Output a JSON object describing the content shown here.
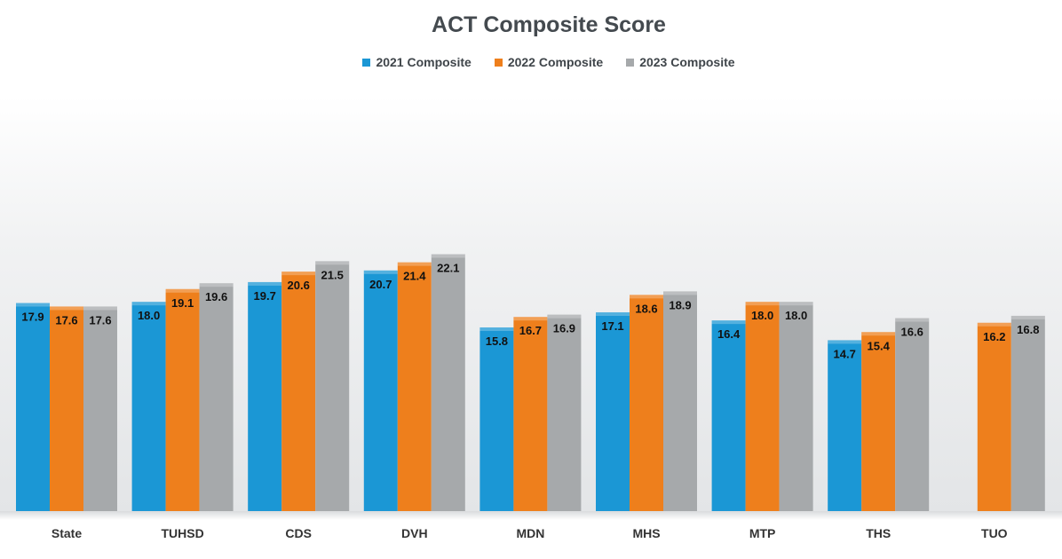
{
  "chart_data": {
    "type": "bar",
    "title": "ACT Composite Score",
    "categories": [
      "State",
      "TUHSD",
      "CDS",
      "DVH",
      "MDN",
      "MHS",
      "MTP",
      "THS",
      "TUO"
    ],
    "series": [
      {
        "name": "2021 Composite",
        "color": "#1b97d5",
        "values": [
          17.9,
          18.0,
          19.7,
          20.7,
          15.8,
          17.1,
          16.4,
          14.7,
          null
        ]
      },
      {
        "name": "2022 Composite",
        "color": "#ee7f1c",
        "values": [
          17.6,
          19.1,
          20.6,
          21.4,
          16.7,
          18.6,
          18.0,
          15.4,
          16.2
        ]
      },
      {
        "name": "2023 Composite",
        "color": "#a6a9ab",
        "values": [
          17.6,
          19.6,
          21.5,
          22.1,
          16.9,
          18.9,
          18.0,
          16.6,
          16.8
        ]
      }
    ],
    "data_labels": [
      [
        "17.9",
        "17.6",
        "17.6"
      ],
      [
        "18.0",
        "19.1",
        "19.6"
      ],
      [
        "19.7",
        "20.6",
        "21.5"
      ],
      [
        "20.7",
        "21.4",
        "22.1"
      ],
      [
        "15.8",
        "16.7",
        "16.9"
      ],
      [
        "17.1",
        "18.6",
        "18.9"
      ],
      [
        "16.4",
        "18.0",
        "18.0"
      ],
      [
        "14.7",
        "15.4",
        "16.6"
      ],
      [
        "",
        "16.2",
        "16.8"
      ]
    ],
    "ylim": [
      0,
      24
    ],
    "grid": false,
    "legend": "top-center"
  }
}
